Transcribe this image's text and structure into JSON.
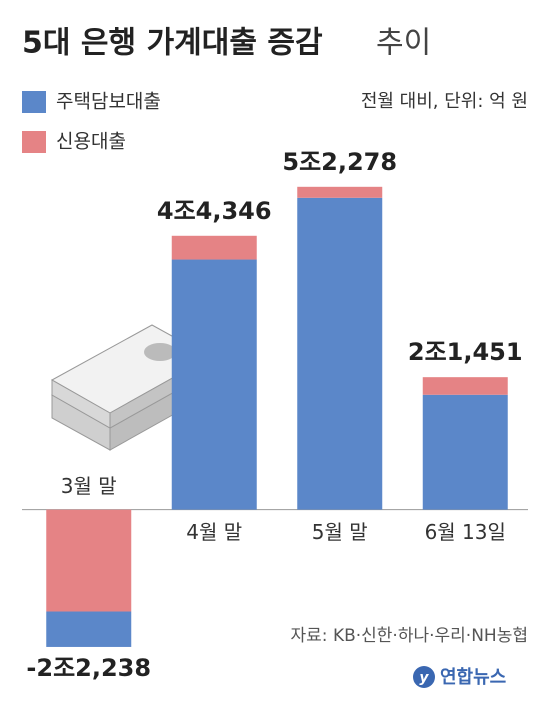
{
  "chart_data": {
    "type": "stacked-bar",
    "title": "5대 은행 가계대출 증감",
    "title_suffix": "추이",
    "subtitle": "전월 대비, 단위: 억 원",
    "categories": [
      "3월 말",
      "4월 말",
      "5월 말",
      "6월 13일"
    ],
    "series": [
      {
        "name": "주택담보대출",
        "color": "#5b87c9",
        "values": [
          -5738,
          40500,
          50500,
          18600
        ]
      },
      {
        "name": "신용대출",
        "color": "#e58385",
        "values": [
          -16500,
          3846,
          1778,
          2851
        ]
      }
    ],
    "totals": [
      -22238,
      44346,
      52278,
      21451
    ],
    "total_labels": [
      "-2조2,238",
      "4조4,346",
      "5조2,278",
      "2조1,451"
    ],
    "ylim": [
      -25000,
      55000
    ],
    "source": "자료: KB·신한·하나·우리·NH농협",
    "logo": "연합뉴스"
  }
}
